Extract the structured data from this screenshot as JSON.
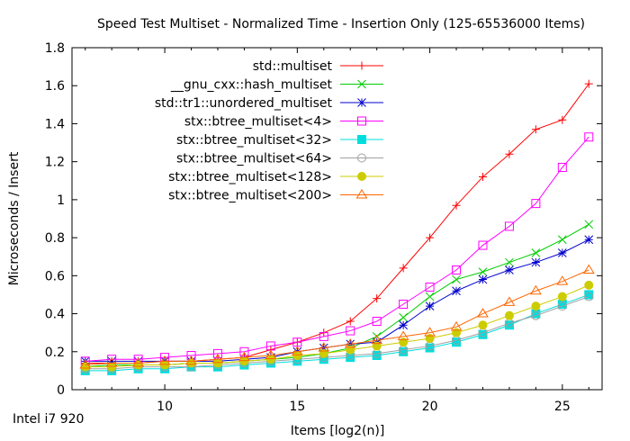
{
  "footnote": "Intel i7 920",
  "chart_data": {
    "type": "line",
    "title": "Speed Test Multiset - Normalized Time - Insertion Only (125-65536000 Items)",
    "xlabel": "Items [log2(n)]",
    "ylabel": "Microseconds / Insert",
    "xlim": [
      6.5,
      26.5
    ],
    "ylim": [
      0,
      1.8
    ],
    "xticks": [
      10,
      15,
      20,
      25
    ],
    "yticks": [
      0,
      0.2,
      0.4,
      0.6,
      0.8,
      1,
      1.2,
      1.4,
      1.6,
      1.8
    ],
    "ytick_labels": [
      "0",
      "0.2",
      "0.4",
      "0.6",
      "0.8",
      "1",
      "1.2",
      "1.4",
      "1.6",
      "1.8"
    ],
    "grid": false,
    "legend_position": "top-right",
    "x": [
      7,
      8,
      9,
      10,
      11,
      12,
      13,
      14,
      15,
      16,
      17,
      18,
      19,
      20,
      21,
      22,
      23,
      24,
      25,
      26
    ],
    "series": [
      {
        "name": "std::multiset",
        "color": "#ff0000",
        "marker": "plus",
        "values": [
          0.14,
          0.14,
          0.14,
          0.15,
          0.15,
          0.16,
          0.17,
          0.21,
          0.25,
          0.3,
          0.36,
          0.48,
          0.64,
          0.8,
          0.97,
          1.12,
          1.24,
          1.37,
          1.42,
          1.61
        ]
      },
      {
        "name": "__gnu_cxx::hash_multiset",
        "color": "#00cc00",
        "marker": "x",
        "values": [
          0.12,
          0.13,
          0.13,
          0.13,
          0.14,
          0.14,
          0.15,
          0.16,
          0.17,
          0.19,
          0.22,
          0.28,
          0.38,
          0.49,
          0.58,
          0.62,
          0.67,
          0.72,
          0.79,
          0.87
        ]
      },
      {
        "name": "std::tr1::unordered_multiset",
        "color": "#0000cc",
        "marker": "star",
        "values": [
          0.15,
          0.15,
          0.15,
          0.15,
          0.15,
          0.15,
          0.16,
          0.17,
          0.2,
          0.22,
          0.24,
          0.25,
          0.34,
          0.44,
          0.52,
          0.58,
          0.63,
          0.67,
          0.72,
          0.79
        ]
      },
      {
        "name": "stx::btree_multiset<4>",
        "color": "#ff00ff",
        "marker": "square-open",
        "values": [
          0.15,
          0.16,
          0.16,
          0.17,
          0.18,
          0.19,
          0.2,
          0.23,
          0.25,
          0.28,
          0.31,
          0.36,
          0.45,
          0.54,
          0.63,
          0.76,
          0.86,
          0.98,
          1.17,
          1.33
        ]
      },
      {
        "name": "stx::btree_multiset<32>",
        "color": "#00dddd",
        "marker": "square-filled",
        "values": [
          0.1,
          0.1,
          0.11,
          0.11,
          0.12,
          0.12,
          0.13,
          0.14,
          0.15,
          0.16,
          0.17,
          0.18,
          0.2,
          0.22,
          0.25,
          0.29,
          0.34,
          0.4,
          0.45,
          0.5
        ]
      },
      {
        "name": "stx::btree_multiset<64>",
        "color": "#a0a0a0",
        "marker": "circle-open",
        "values": [
          0.11,
          0.11,
          0.12,
          0.12,
          0.12,
          0.13,
          0.14,
          0.15,
          0.16,
          0.17,
          0.18,
          0.19,
          0.21,
          0.23,
          0.26,
          0.3,
          0.35,
          0.39,
          0.44,
          0.49
        ]
      },
      {
        "name": "stx::btree_multiset<128>",
        "color": "#cccc00",
        "marker": "circle-filled",
        "values": [
          0.12,
          0.12,
          0.13,
          0.13,
          0.14,
          0.14,
          0.15,
          0.16,
          0.18,
          0.19,
          0.21,
          0.23,
          0.25,
          0.27,
          0.3,
          0.34,
          0.39,
          0.44,
          0.49,
          0.55
        ]
      },
      {
        "name": "stx::btree_multiset<200>",
        "color": "#ff6600",
        "marker": "triangle-open",
        "values": [
          0.13,
          0.14,
          0.14,
          0.15,
          0.15,
          0.16,
          0.17,
          0.18,
          0.2,
          0.22,
          0.24,
          0.26,
          0.28,
          0.3,
          0.33,
          0.4,
          0.46,
          0.52,
          0.57,
          0.63
        ]
      }
    ]
  }
}
